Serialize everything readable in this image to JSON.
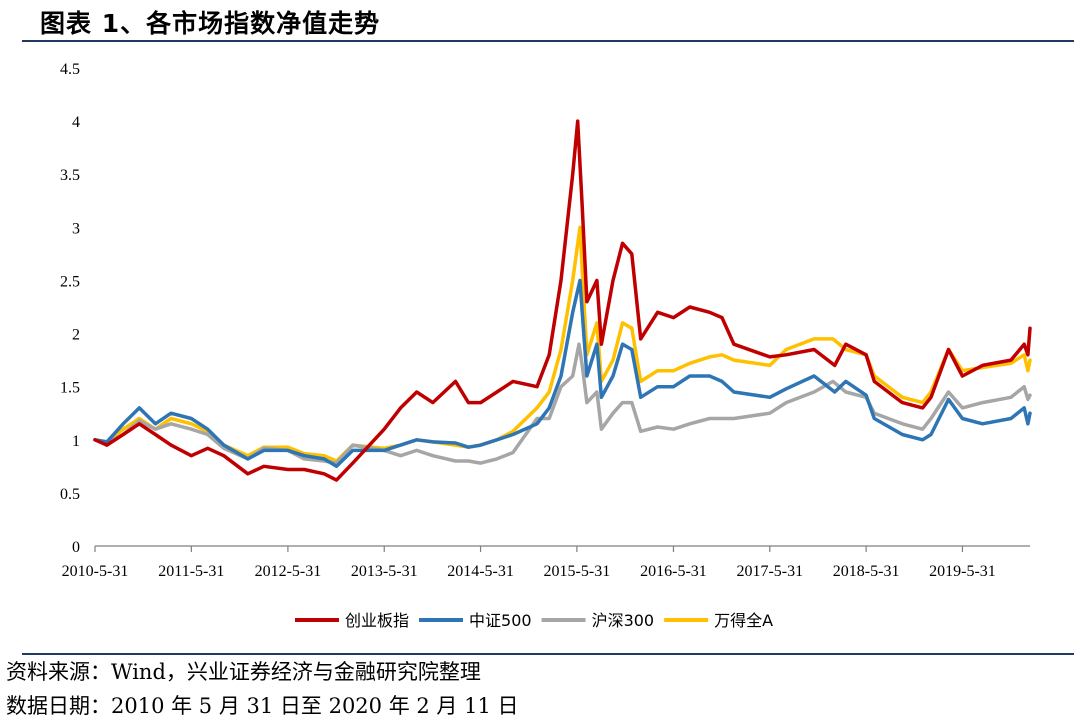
{
  "header": {
    "title": "图表 1、各市场指数净值走势"
  },
  "footer": {
    "source": "资料来源：Wind，兴业证券经济与金融研究院整理",
    "date_range": "数据日期：2010 年 5 月 31 日至 2020 年 2 月 11 日"
  },
  "chart_data": {
    "type": "line",
    "title": "",
    "xlabel": "",
    "ylabel": "",
    "ylim": [
      0,
      4.5
    ],
    "y_ticks": [
      "0",
      "0.5",
      "1",
      "1.5",
      "2",
      "2.5",
      "3",
      "3.5",
      "4",
      "4.5"
    ],
    "x_ticks": [
      "2010-5-31",
      "2011-5-31",
      "2012-5-31",
      "2013-5-31",
      "2014-5-31",
      "2015-5-31",
      "2016-5-31",
      "2017-5-31",
      "2018-5-31",
      "2019-5-31"
    ],
    "grid": false,
    "legend_position": "bottom",
    "x_start": "2010-05-31",
    "x_end": "2020-02-11",
    "series": [
      {
        "name": "创业板指",
        "color": "#c00000",
        "points": [
          [
            "2010-05-31",
            1.0
          ],
          [
            "2010-07-15",
            0.95
          ],
          [
            "2010-09-15",
            1.05
          ],
          [
            "2010-11-15",
            1.15
          ],
          [
            "2011-01-15",
            1.05
          ],
          [
            "2011-03-15",
            0.95
          ],
          [
            "2011-05-31",
            0.85
          ],
          [
            "2011-08-01",
            0.92
          ],
          [
            "2011-10-01",
            0.85
          ],
          [
            "2011-12-31",
            0.68
          ],
          [
            "2012-03-01",
            0.75
          ],
          [
            "2012-05-31",
            0.72
          ],
          [
            "2012-08-01",
            0.72
          ],
          [
            "2012-10-15",
            0.68
          ],
          [
            "2012-12-01",
            0.62
          ],
          [
            "2013-02-01",
            0.78
          ],
          [
            "2013-05-31",
            1.1
          ],
          [
            "2013-08-01",
            1.3
          ],
          [
            "2013-10-01",
            1.45
          ],
          [
            "2013-12-01",
            1.35
          ],
          [
            "2014-02-25",
            1.55
          ],
          [
            "2014-04-15",
            1.35
          ],
          [
            "2014-05-31",
            1.35
          ],
          [
            "2014-08-01",
            1.45
          ],
          [
            "2014-10-01",
            1.55
          ],
          [
            "2014-12-31",
            1.5
          ],
          [
            "2015-02-15",
            1.8
          ],
          [
            "2015-04-01",
            2.5
          ],
          [
            "2015-05-15",
            3.5
          ],
          [
            "2015-06-03",
            4.0
          ],
          [
            "2015-06-20",
            3.2
          ],
          [
            "2015-07-08",
            2.3
          ],
          [
            "2015-08-15",
            2.5
          ],
          [
            "2015-09-01",
            1.9
          ],
          [
            "2015-10-15",
            2.5
          ],
          [
            "2015-11-20",
            2.85
          ],
          [
            "2015-12-25",
            2.75
          ],
          [
            "2016-01-28",
            1.95
          ],
          [
            "2016-04-01",
            2.2
          ],
          [
            "2016-05-31",
            2.15
          ],
          [
            "2016-08-01",
            2.25
          ],
          [
            "2016-10-15",
            2.2
          ],
          [
            "2016-12-01",
            2.15
          ],
          [
            "2017-01-15",
            1.9
          ],
          [
            "2017-05-31",
            1.78
          ],
          [
            "2017-08-01",
            1.8
          ],
          [
            "2017-11-15",
            1.85
          ],
          [
            "2018-02-01",
            1.7
          ],
          [
            "2018-03-15",
            1.9
          ],
          [
            "2018-05-31",
            1.8
          ],
          [
            "2018-07-01",
            1.55
          ],
          [
            "2018-10-15",
            1.35
          ],
          [
            "2018-12-31",
            1.3
          ],
          [
            "2019-02-01",
            1.4
          ],
          [
            "2019-04-08",
            1.85
          ],
          [
            "2019-05-31",
            1.6
          ],
          [
            "2019-08-15",
            1.7
          ],
          [
            "2019-12-01",
            1.75
          ],
          [
            "2020-01-20",
            1.9
          ],
          [
            "2020-02-03",
            1.8
          ],
          [
            "2020-02-11",
            2.05
          ]
        ]
      },
      {
        "name": "中证500",
        "color": "#2e75b6",
        "points": [
          [
            "2010-05-31",
            1.0
          ],
          [
            "2010-07-15",
            0.98
          ],
          [
            "2010-09-15",
            1.15
          ],
          [
            "2010-11-15",
            1.3
          ],
          [
            "2011-01-15",
            1.15
          ],
          [
            "2011-03-15",
            1.25
          ],
          [
            "2011-05-31",
            1.2
          ],
          [
            "2011-08-01",
            1.1
          ],
          [
            "2011-10-01",
            0.95
          ],
          [
            "2011-12-31",
            0.82
          ],
          [
            "2012-03-01",
            0.9
          ],
          [
            "2012-05-31",
            0.9
          ],
          [
            "2012-08-01",
            0.85
          ],
          [
            "2012-10-15",
            0.82
          ],
          [
            "2012-12-01",
            0.75
          ],
          [
            "2013-02-01",
            0.9
          ],
          [
            "2013-05-31",
            0.9
          ],
          [
            "2013-08-01",
            0.95
          ],
          [
            "2013-10-01",
            1.0
          ],
          [
            "2013-12-01",
            0.98
          ],
          [
            "2014-02-25",
            0.97
          ],
          [
            "2014-04-15",
            0.93
          ],
          [
            "2014-05-31",
            0.95
          ],
          [
            "2014-08-01",
            1.0
          ],
          [
            "2014-10-01",
            1.05
          ],
          [
            "2014-12-31",
            1.15
          ],
          [
            "2015-02-15",
            1.3
          ],
          [
            "2015-04-01",
            1.6
          ],
          [
            "2015-05-15",
            2.2
          ],
          [
            "2015-06-12",
            2.5
          ],
          [
            "2015-06-20",
            2.2
          ],
          [
            "2015-07-08",
            1.6
          ],
          [
            "2015-08-15",
            1.9
          ],
          [
            "2015-09-01",
            1.4
          ],
          [
            "2015-10-15",
            1.6
          ],
          [
            "2015-11-20",
            1.9
          ],
          [
            "2015-12-25",
            1.85
          ],
          [
            "2016-01-28",
            1.4
          ],
          [
            "2016-04-01",
            1.5
          ],
          [
            "2016-05-31",
            1.5
          ],
          [
            "2016-08-01",
            1.6
          ],
          [
            "2016-10-15",
            1.6
          ],
          [
            "2016-12-01",
            1.55
          ],
          [
            "2017-01-15",
            1.45
          ],
          [
            "2017-05-31",
            1.4
          ],
          [
            "2017-08-01",
            1.48
          ],
          [
            "2017-11-15",
            1.6
          ],
          [
            "2018-02-01",
            1.45
          ],
          [
            "2018-03-15",
            1.55
          ],
          [
            "2018-05-31",
            1.42
          ],
          [
            "2018-07-01",
            1.2
          ],
          [
            "2018-10-15",
            1.05
          ],
          [
            "2018-12-31",
            1.0
          ],
          [
            "2019-02-01",
            1.05
          ],
          [
            "2019-04-08",
            1.38
          ],
          [
            "2019-05-31",
            1.2
          ],
          [
            "2019-08-15",
            1.15
          ],
          [
            "2019-12-01",
            1.2
          ],
          [
            "2020-01-20",
            1.3
          ],
          [
            "2020-02-03",
            1.15
          ],
          [
            "2020-02-11",
            1.25
          ]
        ]
      },
      {
        "name": "沪深300",
        "color": "#a6a6a6",
        "points": [
          [
            "2010-05-31",
            1.0
          ],
          [
            "2010-07-15",
            0.97
          ],
          [
            "2010-09-15",
            1.05
          ],
          [
            "2010-11-15",
            1.18
          ],
          [
            "2011-01-15",
            1.1
          ],
          [
            "2011-03-15",
            1.15
          ],
          [
            "2011-05-31",
            1.1
          ],
          [
            "2011-08-01",
            1.05
          ],
          [
            "2011-10-01",
            0.92
          ],
          [
            "2011-12-31",
            0.82
          ],
          [
            "2012-03-01",
            0.92
          ],
          [
            "2012-05-31",
            0.9
          ],
          [
            "2012-08-01",
            0.82
          ],
          [
            "2012-10-15",
            0.8
          ],
          [
            "2012-12-01",
            0.78
          ],
          [
            "2013-02-01",
            0.95
          ],
          [
            "2013-05-31",
            0.9
          ],
          [
            "2013-08-01",
            0.85
          ],
          [
            "2013-10-01",
            0.9
          ],
          [
            "2013-12-01",
            0.85
          ],
          [
            "2014-02-25",
            0.8
          ],
          [
            "2014-04-15",
            0.8
          ],
          [
            "2014-05-31",
            0.78
          ],
          [
            "2014-08-01",
            0.82
          ],
          [
            "2014-10-01",
            0.88
          ],
          [
            "2014-12-31",
            1.2
          ],
          [
            "2015-02-15",
            1.2
          ],
          [
            "2015-04-01",
            1.5
          ],
          [
            "2015-05-15",
            1.6
          ],
          [
            "2015-06-08",
            1.9
          ],
          [
            "2015-06-20",
            1.7
          ],
          [
            "2015-07-08",
            1.35
          ],
          [
            "2015-08-15",
            1.45
          ],
          [
            "2015-09-01",
            1.1
          ],
          [
            "2015-10-15",
            1.25
          ],
          [
            "2015-11-20",
            1.35
          ],
          [
            "2015-12-25",
            1.35
          ],
          [
            "2016-01-28",
            1.08
          ],
          [
            "2016-04-01",
            1.12
          ],
          [
            "2016-05-31",
            1.1
          ],
          [
            "2016-08-01",
            1.15
          ],
          [
            "2016-10-15",
            1.2
          ],
          [
            "2016-12-01",
            1.2
          ],
          [
            "2017-01-15",
            1.2
          ],
          [
            "2017-05-31",
            1.25
          ],
          [
            "2017-08-01",
            1.35
          ],
          [
            "2017-11-15",
            1.45
          ],
          [
            "2018-01-25",
            1.55
          ],
          [
            "2018-03-15",
            1.45
          ],
          [
            "2018-05-31",
            1.4
          ],
          [
            "2018-07-01",
            1.25
          ],
          [
            "2018-10-15",
            1.15
          ],
          [
            "2018-12-31",
            1.1
          ],
          [
            "2019-02-01",
            1.2
          ],
          [
            "2019-04-08",
            1.45
          ],
          [
            "2019-05-31",
            1.3
          ],
          [
            "2019-08-15",
            1.35
          ],
          [
            "2019-12-01",
            1.4
          ],
          [
            "2020-01-20",
            1.5
          ],
          [
            "2020-02-03",
            1.38
          ],
          [
            "2020-02-11",
            1.42
          ]
        ]
      },
      {
        "name": "万得全A",
        "color": "#ffc000",
        "points": [
          [
            "2010-05-31",
            1.0
          ],
          [
            "2010-07-15",
            0.98
          ],
          [
            "2010-09-15",
            1.1
          ],
          [
            "2010-11-15",
            1.2
          ],
          [
            "2011-01-15",
            1.1
          ],
          [
            "2011-03-15",
            1.2
          ],
          [
            "2011-05-31",
            1.15
          ],
          [
            "2011-08-01",
            1.08
          ],
          [
            "2011-10-01",
            0.95
          ],
          [
            "2011-12-31",
            0.85
          ],
          [
            "2012-03-01",
            0.93
          ],
          [
            "2012-05-31",
            0.93
          ],
          [
            "2012-08-01",
            0.87
          ],
          [
            "2012-10-15",
            0.85
          ],
          [
            "2012-12-01",
            0.8
          ],
          [
            "2013-02-01",
            0.95
          ],
          [
            "2013-05-31",
            0.92
          ],
          [
            "2013-08-01",
            0.95
          ],
          [
            "2013-10-01",
            1.0
          ],
          [
            "2013-12-01",
            0.98
          ],
          [
            "2014-02-25",
            0.95
          ],
          [
            "2014-04-15",
            0.93
          ],
          [
            "2014-05-31",
            0.95
          ],
          [
            "2014-08-01",
            1.0
          ],
          [
            "2014-10-01",
            1.08
          ],
          [
            "2014-12-31",
            1.3
          ],
          [
            "2015-02-15",
            1.45
          ],
          [
            "2015-04-01",
            1.85
          ],
          [
            "2015-05-15",
            2.5
          ],
          [
            "2015-06-12",
            3.0
          ],
          [
            "2015-06-20",
            2.6
          ],
          [
            "2015-07-08",
            1.8
          ],
          [
            "2015-08-15",
            2.1
          ],
          [
            "2015-09-01",
            1.55
          ],
          [
            "2015-10-15",
            1.75
          ],
          [
            "2015-11-20",
            2.1
          ],
          [
            "2015-12-25",
            2.05
          ],
          [
            "2016-01-28",
            1.55
          ],
          [
            "2016-04-01",
            1.65
          ],
          [
            "2016-05-31",
            1.65
          ],
          [
            "2016-08-01",
            1.72
          ],
          [
            "2016-10-15",
            1.78
          ],
          [
            "2016-12-01",
            1.8
          ],
          [
            "2017-01-15",
            1.75
          ],
          [
            "2017-05-31",
            1.7
          ],
          [
            "2017-08-01",
            1.85
          ],
          [
            "2017-11-15",
            1.95
          ],
          [
            "2018-01-25",
            1.95
          ],
          [
            "2018-03-15",
            1.85
          ],
          [
            "2018-05-31",
            1.8
          ],
          [
            "2018-07-01",
            1.6
          ],
          [
            "2018-10-15",
            1.4
          ],
          [
            "2018-12-31",
            1.35
          ],
          [
            "2019-02-01",
            1.45
          ],
          [
            "2019-04-08",
            1.85
          ],
          [
            "2019-05-31",
            1.65
          ],
          [
            "2019-08-15",
            1.68
          ],
          [
            "2019-12-01",
            1.72
          ],
          [
            "2020-01-20",
            1.8
          ],
          [
            "2020-02-03",
            1.65
          ],
          [
            "2020-02-11",
            1.75
          ]
        ]
      }
    ]
  }
}
